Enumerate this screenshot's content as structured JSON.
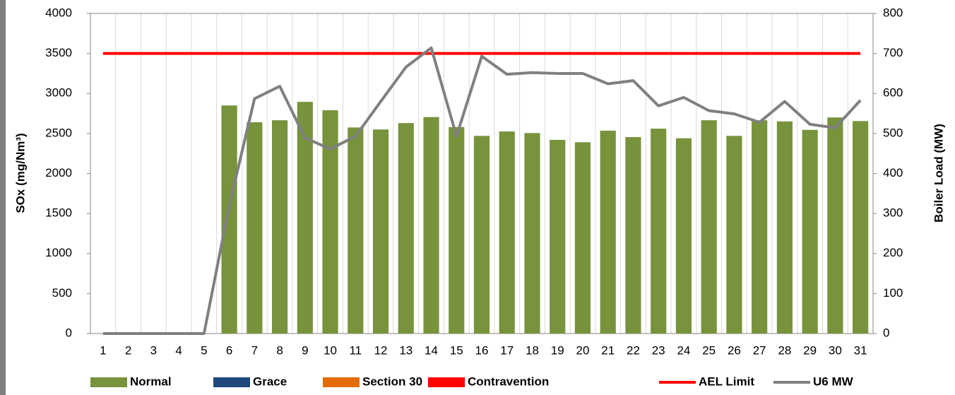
{
  "chart_data": {
    "type": "bar",
    "categories": [
      "1",
      "2",
      "3",
      "4",
      "5",
      "6",
      "7",
      "8",
      "9",
      "10",
      "11",
      "12",
      "13",
      "14",
      "15",
      "16",
      "17",
      "18",
      "19",
      "20",
      "21",
      "22",
      "23",
      "24",
      "25",
      "26",
      "27",
      "28",
      "29",
      "30",
      "31"
    ],
    "series": [
      {
        "name": "Normal",
        "color": "#77933c",
        "values": [
          null,
          null,
          null,
          null,
          null,
          2850,
          2640,
          2665,
          2895,
          2790,
          2575,
          2550,
          2630,
          2705,
          2580,
          2470,
          2525,
          2505,
          2420,
          2390,
          2535,
          2455,
          2560,
          2440,
          2665,
          2470,
          2665,
          2650,
          2545,
          2700,
          2655
        ]
      },
      {
        "name": "Grace",
        "color": "#1f497d",
        "values": [
          null,
          null,
          null,
          null,
          null,
          null,
          null,
          null,
          null,
          null,
          null,
          null,
          null,
          null,
          null,
          null,
          null,
          null,
          null,
          null,
          null,
          null,
          null,
          null,
          null,
          null,
          null,
          null,
          null,
          null,
          null
        ]
      },
      {
        "name": "Section 30",
        "color": "#e36c09",
        "values": [
          null,
          null,
          null,
          null,
          null,
          null,
          null,
          null,
          null,
          null,
          null,
          null,
          null,
          null,
          null,
          null,
          null,
          null,
          null,
          null,
          null,
          null,
          null,
          null,
          null,
          null,
          null,
          null,
          null,
          null,
          null
        ]
      },
      {
        "name": "Contravention",
        "color": "#ff0000",
        "values": [
          null,
          null,
          null,
          null,
          null,
          null,
          null,
          null,
          null,
          null,
          null,
          null,
          null,
          null,
          null,
          null,
          null,
          null,
          null,
          null,
          null,
          null,
          null,
          null,
          null,
          null,
          null,
          null,
          null,
          null,
          null
        ]
      },
      {
        "name": "AEL Limit",
        "type": "line",
        "color": "#ff0000",
        "values": [
          3500,
          3500,
          3500,
          3500,
          3500,
          3500,
          3500,
          3500,
          3500,
          3500,
          3500,
          3500,
          3500,
          3500,
          3500,
          3500,
          3500,
          3500,
          3500,
          3500,
          3500,
          3500,
          3500,
          3500,
          3500,
          3500,
          3500,
          3500,
          3500,
          3500,
          3500
        ]
      },
      {
        "name": "U6 MW",
        "type": "line",
        "axis": "y2",
        "color": "#808080",
        "values": [
          0,
          0,
          0,
          0,
          0,
          320,
          587,
          618,
          489,
          461,
          493,
          580,
          666,
          714,
          493,
          693,
          648,
          652,
          650,
          650,
          624,
          632,
          569,
          590,
          557,
          549,
          528,
          580,
          523,
          514,
          583
        ]
      }
    ],
    "ylabel": "SOx (mg/Nm³)",
    "y2label": "Boiler Load (MW)",
    "ylim": [
      0,
      4000
    ],
    "yticks": [
      0,
      500,
      1000,
      1500,
      2000,
      2500,
      3000,
      3500,
      4000
    ],
    "y2lim": [
      0,
      800
    ],
    "y2ticks": [
      0,
      100,
      200,
      300,
      400,
      500,
      600,
      700,
      800
    ],
    "stacked": true,
    "grid": "vertical",
    "legend": "bottom"
  }
}
